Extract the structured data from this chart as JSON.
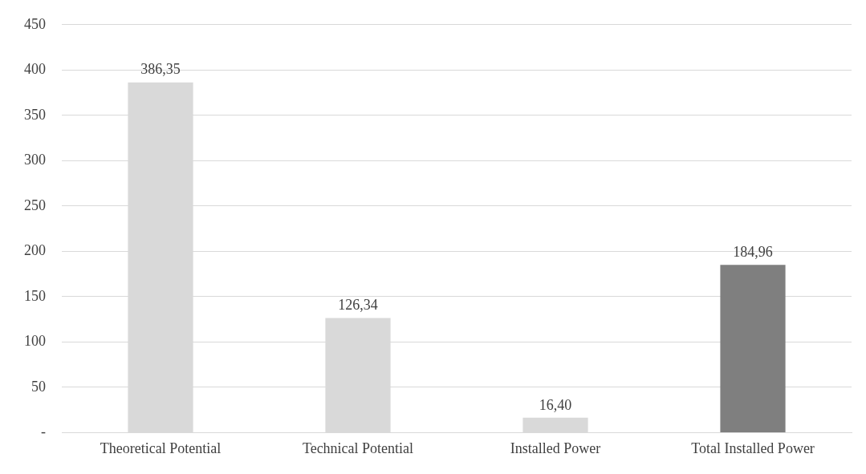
{
  "chart_data": {
    "type": "bar",
    "categories": [
      "Theoretical Potential",
      "Technical Potential",
      "Installed Power",
      "Total Installed Power"
    ],
    "values": [
      386.35,
      126.34,
      16.4,
      184.96
    ],
    "colors": [
      "#d9d9d9",
      "#d9d9d9",
      "#d9d9d9",
      "#7f7f7f"
    ],
    "value_labels": [
      "386,35",
      "126,34",
      "16,40",
      "184,96"
    ],
    "ylim": [
      0,
      450
    ],
    "yticks": [
      {
        "value": 0,
        "label": "-"
      },
      50,
      100,
      150,
      200,
      250,
      300,
      350,
      400,
      450
    ],
    "grid": "y"
  }
}
